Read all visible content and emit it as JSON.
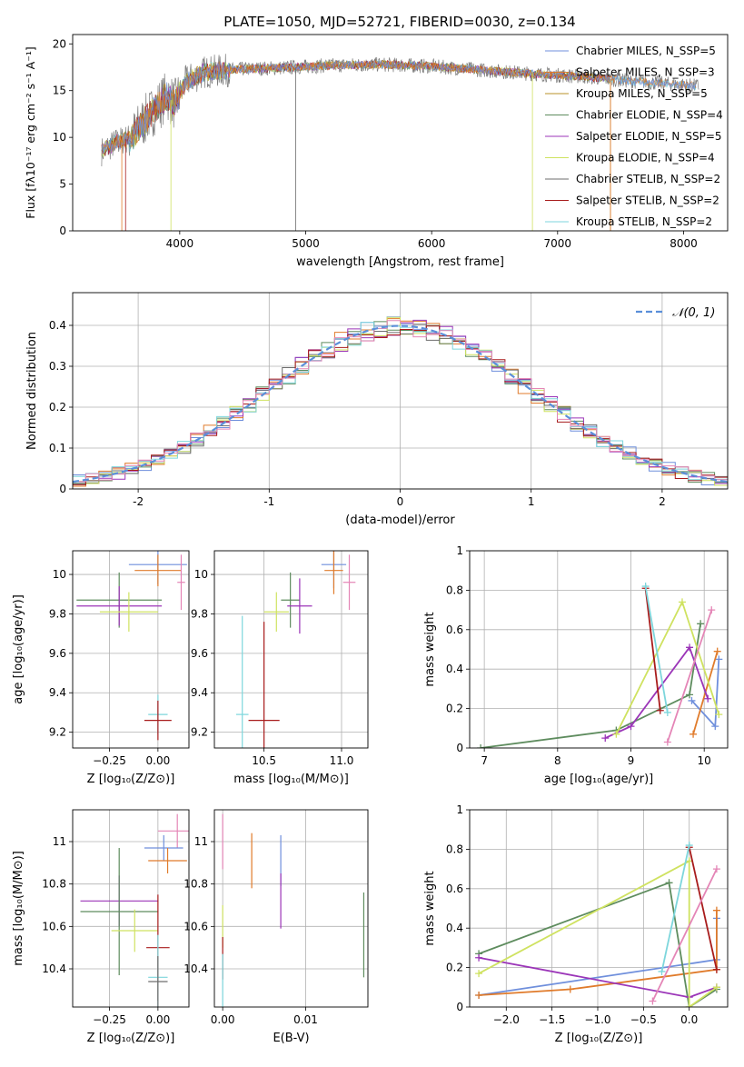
{
  "colors": [
    "#6f8fdc",
    "#e07b2b",
    "#b8902a",
    "#5e8c5e",
    "#9b35b8",
    "#cfe260",
    "#6e6e6e",
    "#a81c1c",
    "#7dd6dc",
    "#e485b6"
  ],
  "chart_data": [
    {
      "id": "spectrum",
      "type": "line",
      "title": "PLATE=1050, MJD=52721, FIBERID=0030, z=0.134",
      "xlabel": "wavelength [Angstrom, rest frame]",
      "ylabel": "Flux [fλ10⁻¹⁷ erg cm⁻² s⁻¹ A⁻¹]",
      "xlim": [
        3150,
        8350
      ],
      "ylim": [
        0,
        21
      ],
      "xticks": [
        4000,
        5000,
        6000,
        7000,
        8000
      ],
      "yticks": [
        0,
        5,
        10,
        15,
        20
      ],
      "legend_position": "right",
      "series": [
        {
          "name": "Chabrier MILES, N_SSP=5"
        },
        {
          "name": "Salpeter MILES, N_SSP=3"
        },
        {
          "name": "Kroupa MILES, N_SSP=5"
        },
        {
          "name": "Chabrier ELODIE, N_SSP=4"
        },
        {
          "name": "Salpeter ELODIE, N_SSP=5"
        },
        {
          "name": "Kroupa ELODIE, N_SSP=4"
        },
        {
          "name": "Chabrier STELIB, N_SSP=2"
        },
        {
          "name": "Salpeter STELIB, N_SSP=2"
        },
        {
          "name": "Kroupa STELIB, N_SSP=2"
        }
      ],
      "continuum_x": [
        3380,
        3500,
        3620,
        3700,
        3800,
        3900,
        3960,
        4050,
        4200,
        4500,
        4900,
        5200,
        5600,
        6000,
        6400,
        6800,
        7200,
        7600,
        8000,
        8100
      ],
      "continuum_y": [
        8.5,
        9.5,
        10.0,
        11.5,
        13.0,
        14.5,
        13.5,
        16.0,
        17.0,
        17.3,
        17.5,
        17.7,
        17.8,
        17.6,
        17.2,
        16.8,
        16.5,
        16.0,
        15.6,
        15.5
      ]
    },
    {
      "id": "residuals",
      "type": "line",
      "xlabel": "(data-model)/error",
      "ylabel": "Normed distribution",
      "xlim": [
        -2.5,
        2.5
      ],
      "ylim": [
        0,
        0.48
      ],
      "xticks": [
        -2,
        -1,
        0,
        1,
        2
      ],
      "yticks": [
        0.0,
        0.1,
        0.2,
        0.3,
        0.4
      ],
      "grid": true,
      "legend_position": "top-right",
      "reference_curve": {
        "name": "𝒩(0, 1)",
        "mean": 0,
        "sigma": 1
      }
    },
    {
      "id": "age-vs-Z",
      "type": "scatter",
      "xlabel": "Z [log₁₀(Z/Z⊙)]",
      "ylabel": "age  [log₁₀(age/yr)]",
      "xlim": [
        -0.44,
        0.16
      ],
      "ylim": [
        9.12,
        10.12
      ],
      "xticks": [
        -0.25,
        0.0
      ],
      "xtick_labels": [
        "−0.25",
        "0.00"
      ],
      "yticks": [
        9.2,
        9.4,
        9.6,
        9.8,
        10.0
      ],
      "grid": true,
      "errorbars": [
        {
          "x": 0.0,
          "xerr": 0.15,
          "y": 10.05,
          "yerr": 0.1,
          "c": 0
        },
        {
          "x": 0.0,
          "xerr": 0.12,
          "y": 10.02,
          "yerr": 0.08,
          "c": 1
        },
        {
          "x": -0.2,
          "xerr": 0.22,
          "y": 9.87,
          "yerr": 0.14,
          "c": 3
        },
        {
          "x": -0.2,
          "xerr": 0.22,
          "y": 9.84,
          "yerr": 0.1,
          "c": 4
        },
        {
          "x": -0.15,
          "xerr": 0.15,
          "y": 9.81,
          "yerr": 0.1,
          "c": 5
        },
        {
          "x": 0.0,
          "xerr": 0.05,
          "y": 9.29,
          "yerr": 0.1,
          "c": 8
        },
        {
          "x": 0.0,
          "xerr": 0.07,
          "y": 9.26,
          "yerr": 0.1,
          "c": 7
        },
        {
          "x": 0.12,
          "xerr": 0.02,
          "y": 9.96,
          "yerr": 0.14,
          "c": 9
        }
      ]
    },
    {
      "id": "age-vs-mass",
      "type": "scatter",
      "xlabel": "mass [log₁₀(M/M⊙)]",
      "xlim": [
        10.18,
        11.17
      ],
      "ylim": [
        9.12,
        10.12
      ],
      "xticks": [
        10.5,
        11.0
      ],
      "xtick_labels": [
        "10.5",
        "11.0"
      ],
      "yticks": [
        9.2,
        9.4,
        9.6,
        9.8,
        10.0
      ],
      "grid": true,
      "errorbars": [
        {
          "x": 10.95,
          "xerr": 0.08,
          "y": 10.05,
          "yerr": 0.12,
          "c": 0
        },
        {
          "x": 10.95,
          "xerr": 0.06,
          "y": 10.02,
          "yerr": 0.12,
          "c": 1
        },
        {
          "x": 10.67,
          "xerr": 0.06,
          "y": 9.87,
          "yerr": 0.14,
          "c": 3
        },
        {
          "x": 10.73,
          "xerr": 0.08,
          "y": 9.84,
          "yerr": 0.14,
          "c": 4
        },
        {
          "x": 10.58,
          "xerr": 0.08,
          "y": 9.81,
          "yerr": 0.1,
          "c": 5
        },
        {
          "x": 10.36,
          "xerr": 0.04,
          "y": 9.29,
          "yerr": 0.5,
          "c": 8
        },
        {
          "x": 10.5,
          "xerr": 0.1,
          "y": 9.26,
          "yerr": 0.5,
          "c": 7
        },
        {
          "x": 11.05,
          "xerr": 0.04,
          "y": 9.96,
          "yerr": 0.14,
          "c": 9
        }
      ]
    },
    {
      "id": "weight-vs-age",
      "type": "line",
      "xlabel": "age  [log₁₀(age/yr)]",
      "ylabel": "mass weight",
      "xlim": [
        6.8,
        10.32
      ],
      "ylim": [
        0,
        1.0
      ],
      "xticks": [
        7,
        8,
        9,
        10
      ],
      "yticks": [
        0.0,
        0.2,
        0.4,
        0.6,
        0.8,
        1.0
      ],
      "grid": true,
      "series": [
        {
          "x": [
            9.83,
            10.15,
            10.2
          ],
          "y": [
            0.24,
            0.11,
            0.45
          ],
          "c": 0
        },
        {
          "x": [
            9.85,
            10.18
          ],
          "y": [
            0.07,
            0.49
          ],
          "c": 1
        },
        {
          "x": [
            6.95,
            8.8,
            9.8,
            9.95
          ],
          "y": [
            0.0,
            0.09,
            0.27,
            0.63
          ],
          "c": 3
        },
        {
          "x": [
            8.65,
            9.0,
            9.8,
            10.05
          ],
          "y": [
            0.05,
            0.11,
            0.51,
            0.25
          ],
          "c": 4
        },
        {
          "x": [
            8.8,
            9.7,
            10.2
          ],
          "y": [
            0.07,
            0.74,
            0.17
          ],
          "c": 5
        },
        {
          "x": [
            9.2,
            9.4
          ],
          "y": [
            0.81,
            0.19
          ],
          "c": 7
        },
        {
          "x": [
            9.2,
            9.5
          ],
          "y": [
            0.82,
            0.18
          ],
          "c": 8
        },
        {
          "x": [
            9.5,
            10.1
          ],
          "y": [
            0.03,
            0.7
          ],
          "c": 9
        }
      ]
    },
    {
      "id": "mass-vs-Z",
      "type": "scatter",
      "xlabel": "Z [log₁₀(Z/Z⊙)]",
      "ylabel": "mass [log₁₀(M/M⊙)]",
      "xlim": [
        -0.44,
        0.16
      ],
      "ylim": [
        10.22,
        11.15
      ],
      "xticks": [
        -0.25,
        0.0
      ],
      "xtick_labels": [
        "−0.25",
        "0.00"
      ],
      "yticks": [
        10.4,
        10.6,
        10.8,
        11.0
      ],
      "grid": true,
      "errorbars": [
        {
          "x": 0.1,
          "xerr": 0.1,
          "y": 11.05,
          "yerr": 0.08,
          "c": 9
        },
        {
          "x": 0.03,
          "xerr": 0.1,
          "y": 10.97,
          "yerr": 0.06,
          "c": 0
        },
        {
          "x": 0.05,
          "xerr": 0.1,
          "y": 10.91,
          "yerr": 0.06,
          "c": 1
        },
        {
          "x": -0.2,
          "xerr": 0.2,
          "y": 10.72,
          "yerr": 0.12,
          "c": 4
        },
        {
          "x": -0.2,
          "xerr": 0.2,
          "y": 10.67,
          "yerr": 0.3,
          "c": 3
        },
        {
          "x": -0.12,
          "xerr": 0.12,
          "y": 10.58,
          "yerr": 0.1,
          "c": 5
        },
        {
          "x": 0.0,
          "xerr": 0.06,
          "y": 10.5,
          "yerr": 0.25,
          "c": 7
        },
        {
          "x": 0.0,
          "xerr": 0.05,
          "y": 10.36,
          "yerr": 0.2,
          "c": 8
        },
        {
          "x": 0.0,
          "xerr": 0.05,
          "y": 10.34,
          "yerr": 0.12,
          "c": 6
        }
      ]
    },
    {
      "id": "mass-vs-EBV",
      "type": "scatter",
      "xlabel": "E(B-V)",
      "xlim": [
        -0.001,
        0.0175
      ],
      "ylim": [
        10.22,
        11.15
      ],
      "xticks": [
        0.0,
        0.01
      ],
      "xtick_labels": [
        "0.00",
        "0.01"
      ],
      "yticks": [
        10.4,
        10.6,
        10.8,
        11.0
      ],
      "grid": true,
      "errorbars": [
        {
          "x": 0.0,
          "y": 11.0,
          "yerr": 0.13,
          "c": 9
        },
        {
          "x": 0.007,
          "y": 10.91,
          "yerr": 0.12,
          "c": 0
        },
        {
          "x": 0.0035,
          "y": 10.91,
          "yerr": 0.13,
          "c": 1
        },
        {
          "x": 0.007,
          "y": 10.72,
          "yerr": 0.13,
          "c": 4
        },
        {
          "x": 0.0,
          "y": 10.6,
          "yerr": 0.1,
          "c": 5
        },
        {
          "x": 0.0,
          "y": 10.45,
          "yerr": 0.1,
          "c": 7
        },
        {
          "x": 0.0,
          "y": 10.34,
          "yerr": 0.13,
          "c": 8
        },
        {
          "x": 0.017,
          "y": 10.56,
          "yerr": 0.2,
          "c": 3
        }
      ]
    },
    {
      "id": "weight-vs-Z",
      "type": "line",
      "xlabel": "Z [log₁₀(Z/Z⊙)]",
      "ylabel": "mass weight",
      "xlim": [
        -2.4,
        0.42
      ],
      "ylim": [
        0,
        1.0
      ],
      "xticks": [
        -2.0,
        -1.5,
        -1.0,
        -0.5,
        0.0
      ],
      "xtick_labels": [
        "−2.0",
        "−1.5",
        "−1.0",
        "−0.5",
        "0.0"
      ],
      "yticks": [
        0.0,
        0.2,
        0.4,
        0.6,
        0.8,
        1.0
      ],
      "grid": true,
      "series": [
        {
          "x": [
            -2.3,
            0.3,
            0.3
          ],
          "y": [
            0.06,
            0.24,
            0.45
          ],
          "c": 0
        },
        {
          "x": [
            -2.3,
            -1.3,
            0.3,
            0.3
          ],
          "y": [
            0.06,
            0.09,
            0.19,
            0.49
          ],
          "c": 1
        },
        {
          "x": [
            -2.3,
            -0.22,
            0.0,
            0.3
          ],
          "y": [
            0.27,
            0.63,
            0.0,
            0.09
          ],
          "c": 3
        },
        {
          "x": [
            -2.3,
            0.0,
            0.3
          ],
          "y": [
            0.25,
            0.05,
            0.1
          ],
          "c": 4
        },
        {
          "x": [
            -2.3,
            0.0,
            0.0,
            0.3
          ],
          "y": [
            0.17,
            0.74,
            0.0,
            0.1
          ],
          "c": 5
        },
        {
          "x": [
            0.0,
            0.3
          ],
          "y": [
            0.81,
            0.19
          ],
          "c": 7
        },
        {
          "x": [
            -0.3,
            0.0
          ],
          "y": [
            0.18,
            0.82
          ],
          "c": 8
        },
        {
          "x": [
            -0.4,
            0.3
          ],
          "y": [
            0.03,
            0.7
          ],
          "c": 9
        }
      ]
    }
  ]
}
